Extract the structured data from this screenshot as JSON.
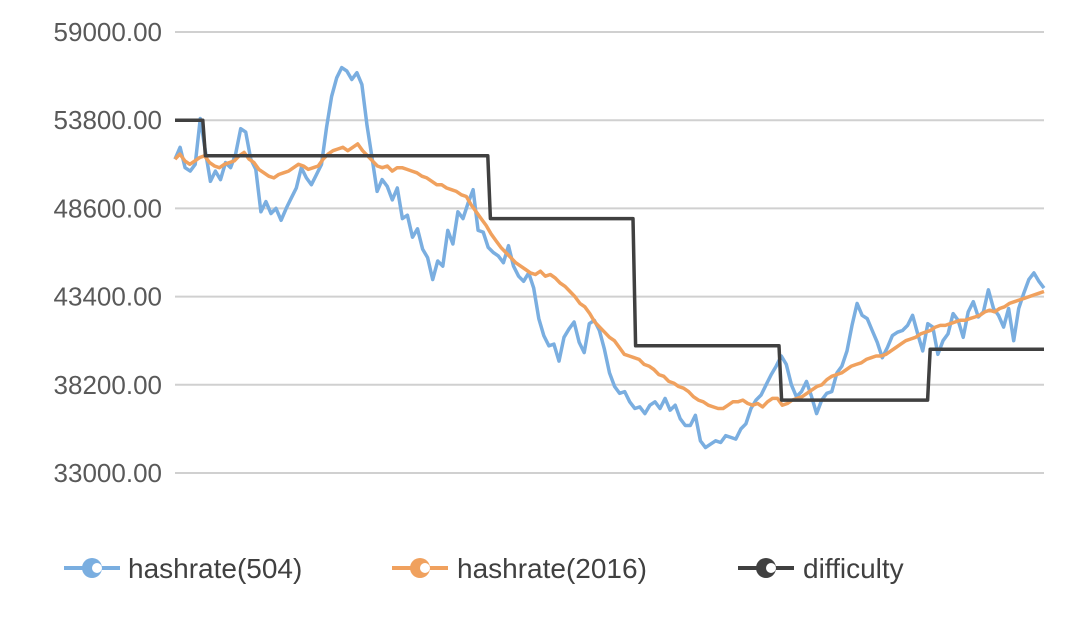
{
  "chart_data": {
    "type": "line",
    "title": "",
    "xlabel": "",
    "ylabel": "",
    "ylim": [
      33000,
      59000
    ],
    "yticks": [
      "59000.00",
      "53800.00",
      "48600.00",
      "43400.00",
      "38200.00",
      "33000.00"
    ],
    "ytick_values": [
      59000,
      53800,
      48600,
      43400,
      38200,
      33000
    ],
    "grid": true,
    "legend_position": "bottom",
    "series": [
      {
        "name": "hashrate(504)",
        "color": "#7aaee0",
        "marker": "circle",
        "values": [
          51500,
          52200,
          51000,
          50800,
          51200,
          53900,
          52000,
          50200,
          50800,
          50300,
          51300,
          51000,
          51800,
          53300,
          53100,
          51500,
          50900,
          48400,
          49000,
          48300,
          48600,
          47900,
          48600,
          49200,
          49800,
          51000,
          50400,
          50000,
          50600,
          51200,
          53400,
          55200,
          56300,
          56900,
          56700,
          56200,
          56600,
          55900,
          53500,
          51600,
          49600,
          50300,
          49900,
          49100,
          49800,
          48000,
          48200,
          46900,
          47400,
          46200,
          45700,
          44400,
          45500,
          45200,
          47300,
          46500,
          48400,
          48000,
          48900,
          49700,
          47300,
          47200,
          46300,
          46000,
          45800,
          45400,
          46400,
          45200,
          44600,
          44300,
          44800,
          43900,
          42100,
          41100,
          40500,
          40600,
          39600,
          41000,
          41500,
          41900,
          40700,
          40100,
          41800,
          42000,
          41400,
          40300,
          38900,
          38100,
          37700,
          37800,
          37200,
          36800,
          36900,
          36500,
          37000,
          37200,
          36800,
          37400,
          36700,
          37000,
          36200,
          35800,
          35800,
          36400,
          34900,
          34500,
          34700,
          34900,
          34800,
          35200,
          35100,
          35000,
          35600,
          35900,
          36800,
          37300,
          37600,
          38200,
          38800,
          39300,
          39900,
          39400,
          38200,
          37500,
          37800,
          38400,
          37500,
          36500,
          37300,
          37700,
          37800,
          38900,
          39300,
          40200,
          41700,
          43000,
          42300,
          42100,
          41400,
          40700,
          39800,
          40400,
          41100,
          41300,
          41400,
          41700,
          42300,
          41200,
          40200,
          41800,
          41600,
          40000,
          40800,
          41200,
          42400,
          42000,
          41000,
          42500,
          43100,
          42200,
          42500,
          43800,
          42700,
          42300,
          41600,
          42700,
          40800,
          42700,
          43600,
          44400,
          44800,
          44300,
          43900
        ],
        "legend_label": "hashrate(504)"
      },
      {
        "name": "hashrate(2016)",
        "color": "#f0a15e",
        "marker": "circle",
        "values": [
          51500,
          51800,
          51400,
          51200,
          51400,
          51600,
          51700,
          51300,
          51100,
          51000,
          51200,
          51300,
          51400,
          51700,
          51900,
          51500,
          51300,
          50900,
          50700,
          50500,
          50400,
          50600,
          50700,
          50800,
          51000,
          51200,
          51100,
          50900,
          51000,
          51100,
          51500,
          51800,
          52000,
          52100,
          52200,
          52000,
          52200,
          52400,
          52000,
          51700,
          51400,
          51100,
          51000,
          51100,
          50800,
          51000,
          51000,
          50900,
          50800,
          50700,
          50500,
          50400,
          50200,
          50000,
          50000,
          49800,
          49700,
          49600,
          49400,
          49300,
          48800,
          48400,
          48000,
          47600,
          47100,
          46700,
          46300,
          46000,
          45700,
          45400,
          45200,
          45000,
          44800,
          44700,
          44900,
          44600,
          44700,
          44500,
          44200,
          44000,
          43700,
          43400,
          43000,
          42800,
          42400,
          41900,
          41600,
          41300,
          41000,
          40800,
          40400,
          40000,
          39900,
          39800,
          39700,
          39400,
          39300,
          39100,
          38800,
          38700,
          38400,
          38300,
          38100,
          38000,
          37800,
          37500,
          37300,
          37200,
          37000,
          36900,
          36800,
          36800,
          37000,
          37200,
          37200,
          37300,
          37100,
          37000,
          37100,
          36900,
          37200,
          37400,
          37400,
          37000,
          37100,
          37300,
          37400,
          37500,
          37700,
          37900,
          38100,
          38200,
          38500,
          38700,
          38800,
          38900,
          39100,
          39300,
          39400,
          39500,
          39700,
          39800,
          39900,
          39900,
          40000,
          40200,
          40400,
          40600,
          40800,
          40900,
          41000,
          41200,
          41300,
          41400,
          41600,
          41700,
          41700,
          41800,
          41900,
          42000,
          42000,
          42100,
          42200,
          42300,
          42500,
          42600,
          42500,
          42700,
          42800,
          43000,
          43100,
          43200,
          43300,
          43400,
          43500,
          43600,
          43700
        ]
      },
      {
        "name": "difficulty",
        "color": "#404040",
        "marker": "circle",
        "step_x": [
          0,
          0.032,
          0.035,
          0.36,
          0.363,
          0.527,
          0.53,
          0.695,
          0.698,
          0.866,
          0.869,
          1.0
        ],
        "step_values": [
          53800,
          53800,
          51700,
          51700,
          48000,
          48000,
          40500,
          40500,
          37300,
          37300,
          40300,
          40300
        ]
      }
    ]
  },
  "legend": {
    "items": [
      {
        "label": "hashrate(504)",
        "color": "#7aaee0"
      },
      {
        "label": "hashrate(2016)",
        "color": "#f0a15e"
      },
      {
        "label": "difficulty",
        "color": "#404040"
      }
    ]
  }
}
